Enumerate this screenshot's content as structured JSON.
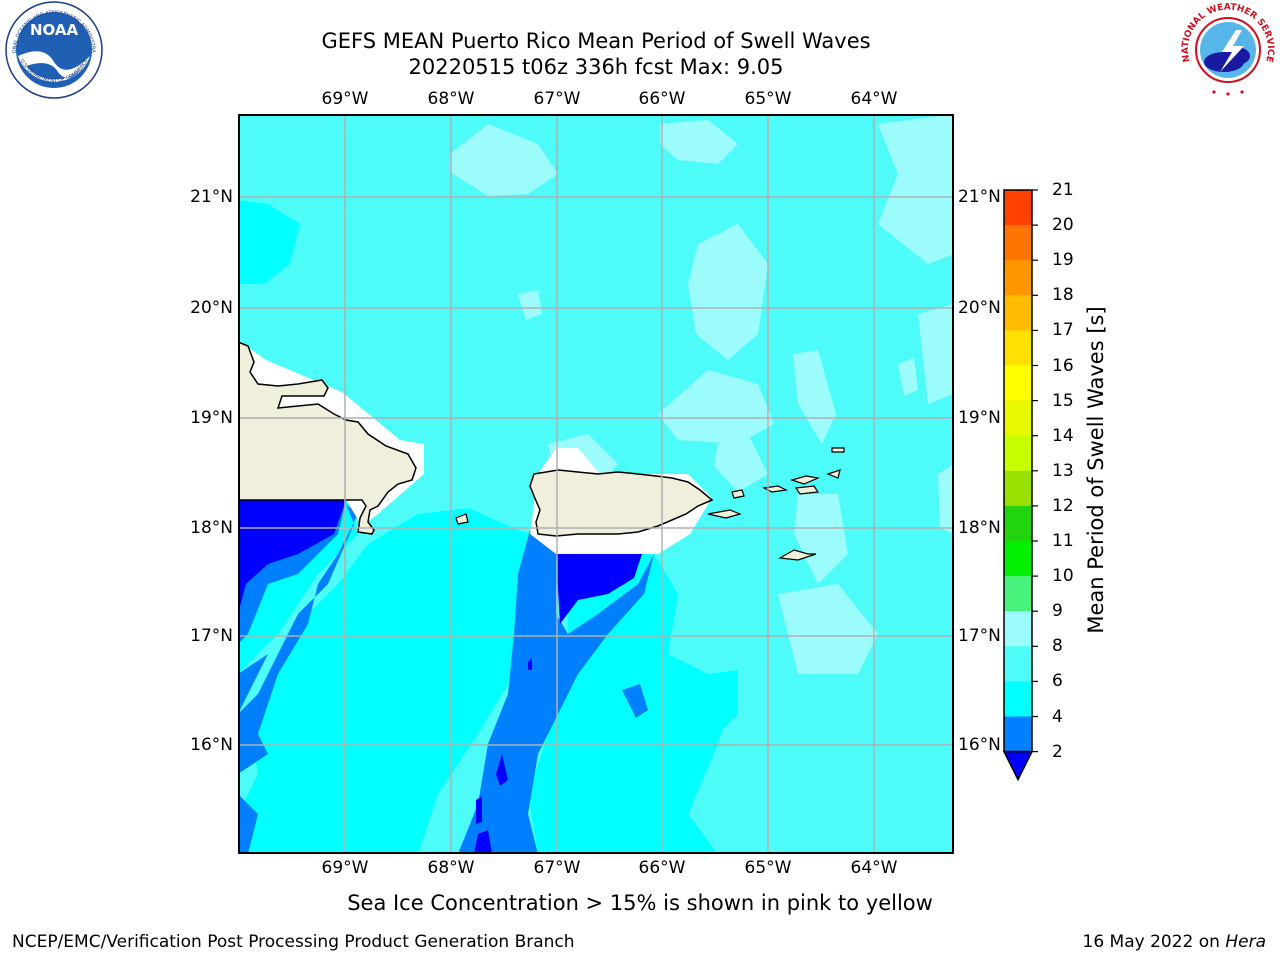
{
  "title": {
    "line1": "GEFS MEAN Puerto Rico Mean Period of Swell Waves",
    "line2": "20220515 t06z 336h fcst   Max: 9.05"
  },
  "map": {
    "lon_ticks": [
      "69°W",
      "68°W",
      "67°W",
      "66°W",
      "65°W",
      "64°W"
    ],
    "lat_ticks": [
      "21°N",
      "20°N",
      "19°N",
      "18°N",
      "17°N",
      "16°N"
    ],
    "lon_range": [
      -70.0,
      -63.25
    ],
    "lat_range": [
      15.0,
      21.75
    ],
    "grid": true,
    "land_color": "#efefdb",
    "projection": "lat-lon"
  },
  "colorbar": {
    "label": "Mean Period of Swell Waves [s]",
    "ticks": [
      "21",
      "20",
      "19",
      "18",
      "17",
      "16",
      "15",
      "14",
      "13",
      "12",
      "11",
      "10",
      "9",
      "8",
      "6",
      "4",
      "2"
    ],
    "levels": [
      2,
      4,
      6,
      8,
      9,
      10,
      11,
      12,
      13,
      14,
      15,
      16,
      17,
      18,
      19,
      20,
      21
    ],
    "colors": [
      "#0080ff",
      "#00ffff",
      "#4dfcf8",
      "#9cfcfc",
      "#49f27c",
      "#00f000",
      "#22d40e",
      "#99e000",
      "#c8ff00",
      "#e8f800",
      "#ffff00",
      "#ffe000",
      "#ffbc00",
      "#ff9600",
      "#ff7400",
      "#ff4000"
    ],
    "under_color": "#0000ff",
    "extend": "min"
  },
  "subtitle": "Sea Ice Concentration > 15% is shown in pink to yellow",
  "footer": {
    "left": "NCEP/EMC/Verification Post Processing Product Generation Branch",
    "right_date": "16 May 2022 on ",
    "right_host": "Hera"
  },
  "logos": {
    "noaa_text": "NOAA",
    "noaa_ring_top": "NATIONAL OCEANIC AND ATMOSPHERIC ADMINISTRATION",
    "noaa_ring_bottom": "U.S. DEPARTMENT OF COMMERCE",
    "nws_ring": "NATIONAL WEATHER SERVICE"
  }
}
